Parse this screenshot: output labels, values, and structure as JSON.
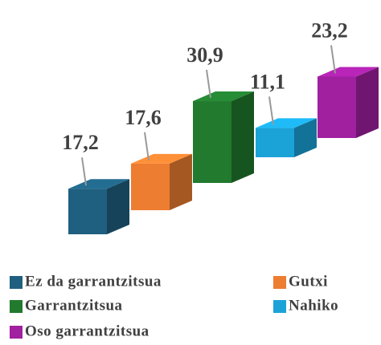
{
  "chart_data": {
    "type": "bar3d",
    "series": [
      {
        "name": "Ez da garrantzitsua",
        "color": "#1f5f7f",
        "values": [
          17.2
        ],
        "value_labels": [
          "17,2"
        ]
      },
      {
        "name": "Gutxi",
        "color": "#ed7d31",
        "values": [
          17.6
        ],
        "value_labels": [
          "17,6"
        ]
      },
      {
        "name": "Garrantzitsua",
        "color": "#217a2e",
        "values": [
          30.9
        ],
        "value_labels": [
          "30,9"
        ]
      },
      {
        "name": "Nahiko",
        "color": "#1ba3d8",
        "values": [
          11.1
        ],
        "value_labels": [
          "11,1"
        ]
      },
      {
        "name": "Oso garrantzitsua",
        "color": "#a020a0",
        "values": [
          23.2
        ],
        "value_labels": [
          "23,2"
        ]
      }
    ]
  }
}
